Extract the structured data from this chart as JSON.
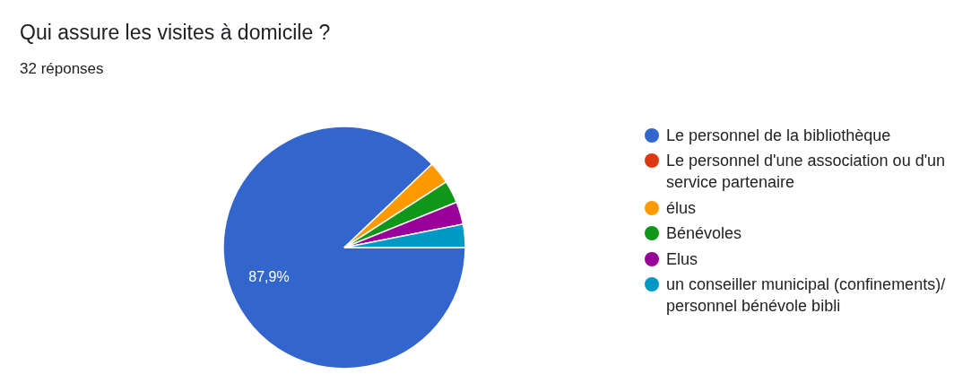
{
  "chart_data": {
    "type": "pie",
    "title": "Qui assure les visites à domicile ?",
    "subtitle": "32 réponses",
    "categories": [
      "Le personnel de la bibliothèque",
      "Le personnel d'une association ou d'un service partenaire",
      "élus",
      "Bénévoles",
      "Elus",
      "un conseiller municipal (confinements)/ personnel bénévole bibli"
    ],
    "values": [
      87.9,
      0,
      3,
      3,
      3,
      3.1
    ],
    "colors": [
      "#3366cc",
      "#dc3912",
      "#ff9900",
      "#109618",
      "#990099",
      "#0099c6"
    ],
    "value_labels": [
      "87,9%",
      null,
      null,
      null,
      null,
      null
    ],
    "legend": "right"
  }
}
